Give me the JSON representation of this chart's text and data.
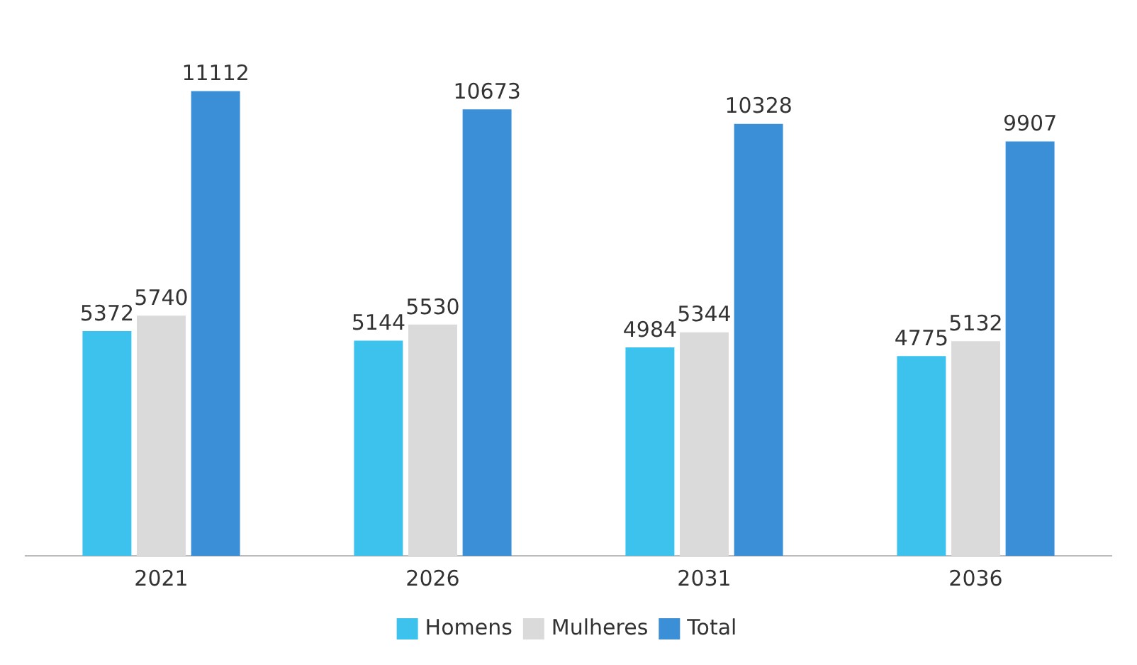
{
  "chart_data": {
    "type": "bar",
    "categories": [
      "2021",
      "2026",
      "2031",
      "2036"
    ],
    "series": [
      {
        "name": "Homens",
        "color": "#3dc2ee",
        "values": [
          5372,
          5144,
          4984,
          4775
        ]
      },
      {
        "name": "Mulheres",
        "color": "#dadada",
        "values": [
          5740,
          5530,
          5344,
          5132
        ]
      },
      {
        "name": "Total",
        "color": "#3a8fd6",
        "values": [
          11112,
          10673,
          10328,
          9907
        ]
      }
    ],
    "data_labels": true,
    "legend": "bottom",
    "grid": false
  }
}
